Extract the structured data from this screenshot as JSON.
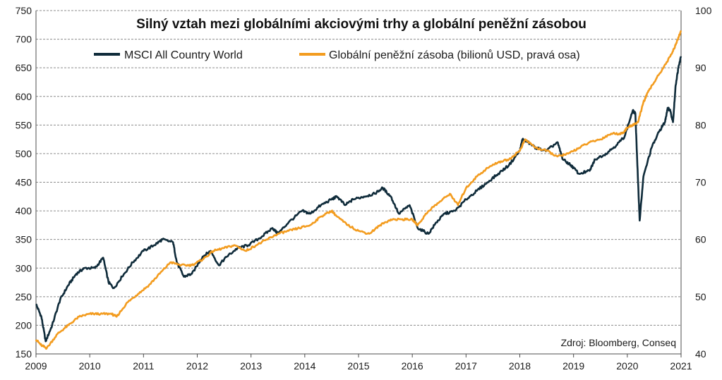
{
  "chart_data": {
    "type": "line",
    "title": "Silný vztah mezi globálními akciovými trhy a globální peněžní zásobou",
    "source": "Zdroj: Bloomberg, Conseq",
    "x_ticks": [
      "2009",
      "2010",
      "2011",
      "2012",
      "2013",
      "2014",
      "2015",
      "2016",
      "2017",
      "2018",
      "2019",
      "2020",
      "2021"
    ],
    "xlim": [
      2009,
      2021
    ],
    "y_left": {
      "ylim": [
        150,
        750
      ],
      "ticks": [
        "150",
        "200",
        "250",
        "300",
        "350",
        "400",
        "450",
        "500",
        "550",
        "600",
        "650",
        "700",
        "750"
      ]
    },
    "y_right": {
      "ylim": [
        40,
        100
      ],
      "ticks": [
        "40",
        "50",
        "60",
        "70",
        "80",
        "90",
        "100"
      ]
    },
    "grid": "horizontal dashed",
    "legend_position": "top",
    "series": [
      {
        "name": "MSCI All Country World",
        "axis": "left",
        "color": "#0f2b3a",
        "x": [
          2009.0,
          2009.1,
          2009.18,
          2009.3,
          2009.45,
          2009.6,
          2009.75,
          2009.9,
          2010.1,
          2010.25,
          2010.35,
          2010.45,
          2010.6,
          2010.8,
          2011.0,
          2011.2,
          2011.35,
          2011.55,
          2011.62,
          2011.75,
          2011.9,
          2012.1,
          2012.25,
          2012.4,
          2012.55,
          2012.75,
          2012.95,
          2013.2,
          2013.4,
          2013.5,
          2013.7,
          2013.95,
          2014.1,
          2014.3,
          2014.5,
          2014.6,
          2014.75,
          2014.9,
          2015.1,
          2015.3,
          2015.45,
          2015.6,
          2015.75,
          2015.95,
          2016.1,
          2016.3,
          2016.45,
          2016.6,
          2016.8,
          2017.0,
          2017.2,
          2017.4,
          2017.6,
          2017.8,
          2018.0,
          2018.05,
          2018.15,
          2018.3,
          2018.5,
          2018.7,
          2018.8,
          2018.95,
          2019.1,
          2019.3,
          2019.4,
          2019.6,
          2019.8,
          2019.95,
          2020.1,
          2020.15,
          2020.2,
          2020.23,
          2020.3,
          2020.45,
          2020.6,
          2020.7,
          2020.75,
          2020.8,
          2020.85,
          2020.9,
          2020.95,
          2021.0
        ],
        "values": [
          237,
          215,
          172,
          200,
          245,
          270,
          290,
          300,
          300,
          318,
          275,
          265,
          285,
          310,
          330,
          340,
          350,
          345,
          310,
          285,
          290,
          320,
          330,
          305,
          320,
          335,
          340,
          355,
          370,
          360,
          380,
          400,
          395,
          410,
          420,
          425,
          410,
          420,
          425,
          430,
          440,
          425,
          395,
          410,
          370,
          360,
          380,
          395,
          400,
          420,
          435,
          450,
          465,
          480,
          505,
          525,
          520,
          510,
          505,
          520,
          490,
          480,
          465,
          470,
          490,
          500,
          515,
          530,
          575,
          570,
          450,
          383,
          460,
          510,
          540,
          555,
          580,
          575,
          555,
          620,
          650,
          670
        ]
      },
      {
        "name": "Globální peněžní zásoba (bilionů USD, pravá osa)",
        "axis": "right",
        "color": "#f39c1f",
        "x": [
          2009.0,
          2009.1,
          2009.2,
          2009.4,
          2009.6,
          2009.8,
          2010.0,
          2010.2,
          2010.4,
          2010.5,
          2010.7,
          2010.9,
          2011.1,
          2011.3,
          2011.5,
          2011.7,
          2011.9,
          2012.1,
          2012.3,
          2012.5,
          2012.7,
          2012.9,
          2013.1,
          2013.3,
          2013.5,
          2013.7,
          2013.9,
          2014.1,
          2014.3,
          2014.5,
          2014.6,
          2014.8,
          2015.0,
          2015.2,
          2015.4,
          2015.6,
          2015.8,
          2016.0,
          2016.1,
          2016.3,
          2016.5,
          2016.7,
          2016.85,
          2017.0,
          2017.2,
          2017.4,
          2017.6,
          2017.8,
          2018.0,
          2018.1,
          2018.3,
          2018.5,
          2018.7,
          2018.9,
          2019.1,
          2019.3,
          2019.5,
          2019.7,
          2019.9,
          2020.0,
          2020.1,
          2020.2,
          2020.3,
          2020.4,
          2020.6,
          2020.8,
          2020.9,
          2021.0
        ],
        "values": [
          42.5,
          41.5,
          41.0,
          43.5,
          45.0,
          46.5,
          47.0,
          47.0,
          47.0,
          46.5,
          49.0,
          50.5,
          52.0,
          54.0,
          56.0,
          55.5,
          55.5,
          56.5,
          58.0,
          58.5,
          59.0,
          58.0,
          59.0,
          60.0,
          61.0,
          61.5,
          62.0,
          62.5,
          64.0,
          65.0,
          64.0,
          62.5,
          61.5,
          61.0,
          62.5,
          63.5,
          63.5,
          63.5,
          62.5,
          65.0,
          66.5,
          68.0,
          66.0,
          69.0,
          71.0,
          72.5,
          73.5,
          74.0,
          75.5,
          77.5,
          76.0,
          75.5,
          74.5,
          75.0,
          76.0,
          77.0,
          77.5,
          78.5,
          78.5,
          79.5,
          80.0,
          80.5,
          84.0,
          86.0,
          89.0,
          92.0,
          94.0,
          96.5
        ]
      }
    ]
  }
}
